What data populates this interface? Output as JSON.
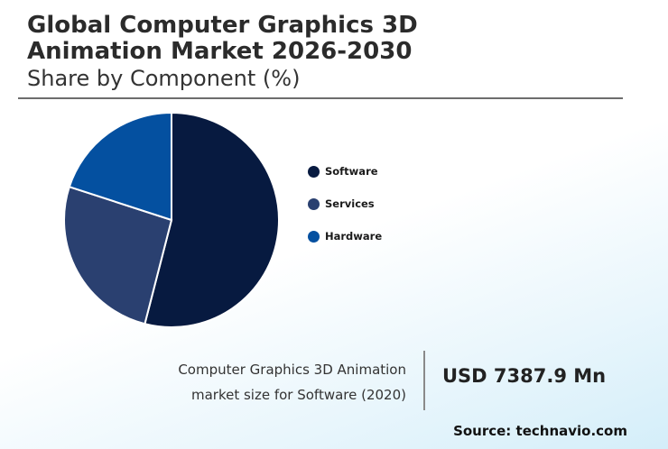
{
  "header": {
    "title_line1": "Global Computer Graphics 3D",
    "title_line2": "Animation Market 2026-2030",
    "subtitle": "Share by Component (%)"
  },
  "chart_data": {
    "type": "pie",
    "title": "Global Computer Graphics 3D Animation Market 2026-2030",
    "subtitle": "Share by Component (%)",
    "categories": [
      "Software",
      "Services",
      "Hardware"
    ],
    "values": [
      54,
      26,
      20
    ],
    "colors": [
      "#071a40",
      "#2a4070",
      "#0450a0"
    ],
    "legend": "right"
  },
  "market_size": {
    "desc_line1": "Computer Graphics 3D Animation",
    "desc_line2": "market size for Software (2020)",
    "value": "USD 7387.9 Mn"
  },
  "source": "Source: technavio.com"
}
